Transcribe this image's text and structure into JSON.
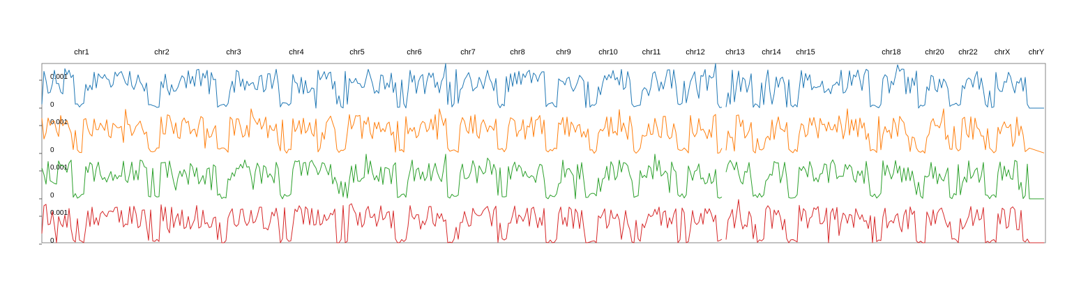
{
  "chart_data": {
    "type": "line",
    "title": "",
    "xlabel": "",
    "ylabel": "",
    "chromosomes": [
      "chr1",
      "chr2",
      "chr3",
      "chr4",
      "chr5",
      "chr6",
      "chr7",
      "chr8",
      "chr9",
      "chr10",
      "chr11",
      "chr12",
      "chr13",
      "chr14",
      "chr15",
      "chr18",
      "chr20",
      "chr22",
      "chrX",
      "chrY"
    ],
    "y_ticks": [
      "0",
      "0.001"
    ],
    "ylim": [
      0,
      0.0016
    ],
    "grid": false,
    "legend": "none",
    "series": [
      {
        "color": "#1f77b4"
      },
      {
        "color": "#ff7f0e"
      },
      {
        "color": "#2ca02c"
      },
      {
        "color": "#d62728"
      }
    ]
  }
}
